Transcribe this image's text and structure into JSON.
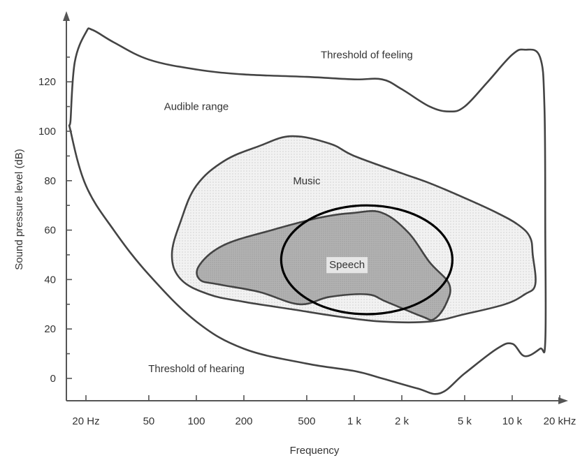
{
  "chart_data": {
    "type": "area",
    "title": "",
    "xlabel": "Frequency",
    "ylabel": "Sound pressure level (dB)",
    "x_scale": "log",
    "xlim_hz": [
      14,
      30000
    ],
    "ylim_db": [
      -8,
      145
    ],
    "x_ticks": [
      {
        "hz": 20,
        "label": "20 Hz"
      },
      {
        "hz": 50,
        "label": "50"
      },
      {
        "hz": 100,
        "label": "100"
      },
      {
        "hz": 200,
        "label": "200"
      },
      {
        "hz": 500,
        "label": "500"
      },
      {
        "hz": 1000,
        "label": "1 k"
      },
      {
        "hz": 2000,
        "label": "2 k"
      },
      {
        "hz": 5000,
        "label": "5 k"
      },
      {
        "hz": 10000,
        "label": "10 k"
      },
      {
        "hz": 20000,
        "label": "20 kHz"
      }
    ],
    "y_ticks": [
      {
        "db": 0,
        "label": "0"
      },
      {
        "db": 20,
        "label": "20"
      },
      {
        "db": 40,
        "label": "40"
      },
      {
        "db": 60,
        "label": "60"
      },
      {
        "db": 80,
        "label": "80"
      },
      {
        "db": 100,
        "label": "100"
      },
      {
        "db": 120,
        "label": "120"
      }
    ],
    "audible_range_outline": [
      [
        16,
        105
      ],
      [
        17,
        128
      ],
      [
        20,
        140
      ],
      [
        22,
        141
      ],
      [
        30,
        136
      ],
      [
        50,
        129
      ],
      [
        100,
        125
      ],
      [
        200,
        123
      ],
      [
        500,
        122
      ],
      [
        1000,
        121
      ],
      [
        1500,
        121
      ],
      [
        2000,
        117
      ],
      [
        3000,
        110
      ],
      [
        4000,
        108
      ],
      [
        5000,
        110
      ],
      [
        7000,
        120
      ],
      [
        10000,
        131
      ],
      [
        12000,
        133
      ],
      [
        15000,
        130
      ],
      [
        16000,
        110
      ],
      [
        16200,
        60
      ],
      [
        16200,
        15
      ],
      [
        15000,
        12
      ],
      [
        12000,
        9
      ],
      [
        10000,
        14
      ],
      [
        8000,
        12
      ],
      [
        5000,
        2
      ],
      [
        3500,
        -6
      ],
      [
        2500,
        -4
      ],
      [
        1500,
        0
      ],
      [
        1000,
        3
      ],
      [
        500,
        6
      ],
      [
        200,
        12
      ],
      [
        100,
        23
      ],
      [
        50,
        42
      ],
      [
        30,
        60
      ],
      [
        20,
        78
      ],
      [
        16,
        100
      ]
    ],
    "music_region": [
      [
        70,
        50
      ],
      [
        80,
        64
      ],
      [
        100,
        78
      ],
      [
        150,
        88
      ],
      [
        250,
        94
      ],
      [
        400,
        98
      ],
      [
        700,
        95
      ],
      [
        1000,
        90
      ],
      [
        2000,
        83
      ],
      [
        3000,
        79
      ],
      [
        5000,
        73
      ],
      [
        8000,
        67
      ],
      [
        11000,
        62
      ],
      [
        13000,
        57
      ],
      [
        13500,
        50
      ],
      [
        14000,
        38
      ],
      [
        12000,
        34
      ],
      [
        9000,
        30
      ],
      [
        5000,
        26
      ],
      [
        3000,
        23
      ],
      [
        1500,
        23
      ],
      [
        800,
        25
      ],
      [
        400,
        28
      ],
      [
        200,
        31
      ],
      [
        120,
        34
      ],
      [
        80,
        40
      ]
    ],
    "speech_region": [
      [
        105,
        46
      ],
      [
        150,
        54
      ],
      [
        300,
        60
      ],
      [
        600,
        65
      ],
      [
        1000,
        67
      ],
      [
        1500,
        67
      ],
      [
        2200,
        59
      ],
      [
        3000,
        47
      ],
      [
        4000,
        38
      ],
      [
        3800,
        30
      ],
      [
        3200,
        24
      ],
      [
        2700,
        25
      ],
      [
        1600,
        31
      ],
      [
        1200,
        34
      ],
      [
        700,
        33
      ],
      [
        450,
        30
      ],
      [
        250,
        35
      ],
      [
        140,
        38
      ],
      [
        105,
        40
      ]
    ],
    "highlight_circle": {
      "center_hz": 1200,
      "center_db": 48,
      "radius_octaves": 1.8,
      "radius_db": 22
    },
    "annotations": [
      {
        "key": "feeling",
        "text": "Threshold of feeling",
        "hz": 1200,
        "db": 131
      },
      {
        "key": "audible",
        "text": "Audible range",
        "hz": 100,
        "db": 110
      },
      {
        "key": "music",
        "text": "Music",
        "hz": 500,
        "db": 80
      },
      {
        "key": "speech",
        "text": "Speech",
        "hz": 900,
        "db": 46
      },
      {
        "key": "hearing",
        "text": "Threshold of hearing",
        "hz": 100,
        "db": 4
      }
    ],
    "colors": {
      "music_fill": "#ececec",
      "speech_fill": "#b4b4b4",
      "circle_stroke": "#000000",
      "outline": "#444444"
    }
  }
}
